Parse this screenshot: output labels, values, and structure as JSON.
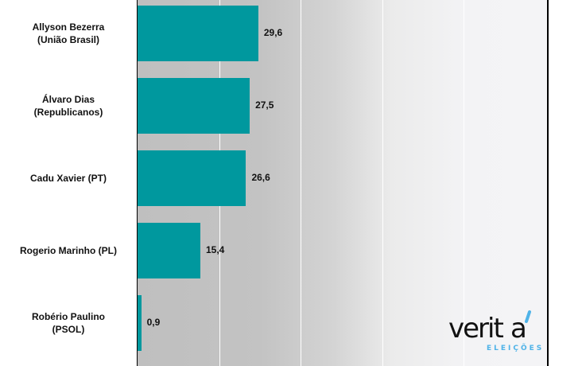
{
  "chart_data": {
    "type": "bar",
    "orientation": "horizontal",
    "categories": [
      [
        "Allyson Bezerra",
        "(União Brasil)"
      ],
      [
        "Álvaro Dias",
        "(Republicanos)"
      ],
      [
        "Cadu Xavier (PT)"
      ],
      [
        "Rogerio Marinho (PL)"
      ],
      [
        "Robério Paulino",
        "(PSOL)"
      ]
    ],
    "values": [
      29.6,
      27.5,
      26.6,
      15.4,
      0.9
    ],
    "data_labels": [
      "29,6",
      "27,5",
      "26,6",
      "15,4",
      "0,9"
    ],
    "xlim": [
      0,
      100
    ],
    "grid": true,
    "bar_color": "#00989e"
  },
  "logo": {
    "text": "veritá",
    "subtext": "ELEIÇÕES",
    "accent": "#4fb3e8"
  }
}
